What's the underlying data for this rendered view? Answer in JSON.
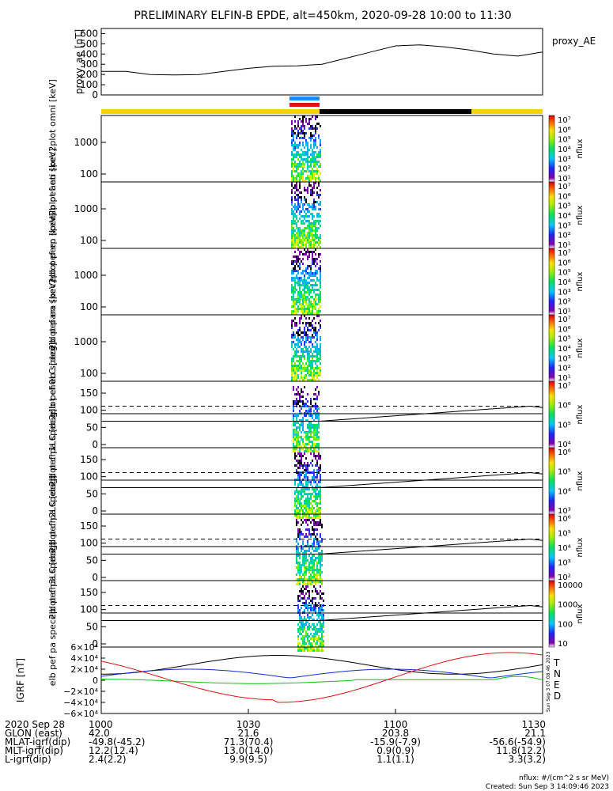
{
  "title": "PRELIMINARY ELFIN-B EPDE, alt=450km, 2020-09-28 10:00 to 11:30",
  "proxy_ae": {
    "ylabel": "proxy_ae [nT]",
    "legend": "proxy_AE",
    "yticks": [
      "600",
      "500",
      "400",
      "300",
      "200",
      "100",
      "0"
    ],
    "ylim": [
      0,
      650
    ],
    "x": [
      0,
      5,
      10,
      15,
      20,
      25,
      30,
      35,
      40,
      45,
      50,
      55,
      60,
      65,
      70,
      75,
      80,
      85,
      90
    ],
    "values": [
      230,
      230,
      200,
      195,
      200,
      230,
      260,
      280,
      285,
      300,
      360,
      420,
      480,
      490,
      470,
      440,
      400,
      380,
      420
    ]
  },
  "status_bars": {
    "colors": {
      "yellow": "#f5d400",
      "black": "#000000",
      "blue": "#1a8cff",
      "red": "#e01010"
    }
  },
  "spectrograms": [
    {
      "name": "omni",
      "ylabel": "elb pef en spec2plot omni [keV]",
      "yticks": [
        "1000",
        "100"
      ],
      "cb_labels": [
        "10⁷",
        "10⁶",
        "10⁵",
        "10⁴",
        "10³",
        "10²",
        "10¹"
      ],
      "cb_title": "nflux"
    },
    {
      "name": "anti",
      "ylabel": "elb pef en spec2plot anti [keV]",
      "yticks": [
        "1000",
        "100"
      ],
      "cb_labels": [
        "10⁷",
        "10⁶",
        "10⁵",
        "10⁴",
        "10³",
        "10²",
        "10¹"
      ],
      "cb_title": "nflux"
    },
    {
      "name": "perp",
      "ylabel": "elb pef en spec2plot perp [keV]",
      "yticks": [
        "1000",
        "100"
      ],
      "cb_labels": [
        "10⁷",
        "10⁶",
        "10⁵",
        "10⁴",
        "10³",
        "10²",
        "10¹"
      ],
      "cb_title": "nflux"
    },
    {
      "name": "para",
      "ylabel": "elb pef en spec2plot para [keV]",
      "yticks": [
        "1000",
        "100"
      ],
      "cb_labels": [
        "10⁷",
        "10⁶",
        "10⁵",
        "10⁴",
        "10³",
        "10²",
        "10¹"
      ],
      "cb_title": "nflux"
    }
  ],
  "pitch_angle": [
    {
      "name": "ch0LC",
      "ylabel": "elb pef pa spec2plot ch0LC [deg]",
      "yticks": [
        "150",
        "100",
        "50",
        "0"
      ],
      "cb_labels": [
        "10⁷",
        "10⁶",
        "10⁵",
        "10⁴"
      ],
      "cb_title": "nflux"
    },
    {
      "name": "ch1LC",
      "ylabel": "elb pef pa spec2plot ch1LC [deg]",
      "yticks": [
        "150",
        "100",
        "50",
        "0"
      ],
      "cb_labels": [
        "10⁶",
        "10⁵",
        "10⁴",
        "10³"
      ],
      "cb_title": "nflux"
    },
    {
      "name": "ch2LC",
      "ylabel": "elb pef pa spec2plot ch2LC [deg]",
      "yticks": [
        "150",
        "100",
        "50",
        "0"
      ],
      "cb_labels": [
        "10⁶",
        "10⁵",
        "10⁴",
        "10³",
        "10²"
      ],
      "cb_title": "nflux"
    },
    {
      "name": "ch3LC",
      "ylabel": "elb pef pa spec2plot ch3LC [deg]",
      "yticks": [
        "150",
        "100",
        "50",
        "0"
      ],
      "cb_labels": [
        "10000",
        "1000",
        "100",
        "10"
      ],
      "cb_title": "nflux"
    }
  ],
  "igrf": {
    "ylabel": "IGRF [nT]",
    "yticks": [
      "6×10⁴",
      "4×10⁴",
      "2×10⁴",
      "0",
      "−2×10⁴",
      "−4×10⁴",
      "−6×10⁴"
    ],
    "ylim": [
      -60000,
      60000
    ],
    "legend": [
      {
        "label": "T",
        "color": "#000000"
      },
      {
        "label": "N",
        "color": "#1030d0"
      },
      {
        "label": "E",
        "color": "#10c010"
      },
      {
        "label": "D",
        "color": "#e01010"
      }
    ],
    "side_stamp": "Sun Sep  3 07:08:46 2023"
  },
  "x_axis": {
    "ticks": [
      "1000",
      "1030",
      "1100",
      "1130"
    ]
  },
  "ephemeris": {
    "rows": [
      {
        "label": "2020 Sep 28",
        "values": [
          "1000",
          "1030",
          "1100",
          "1130"
        ]
      },
      {
        "label": "GLON (east)",
        "values": [
          "42.0",
          "21.6",
          "203.8",
          "21.1"
        ]
      },
      {
        "label": "MLAT-igrf(dip)",
        "values": [
          "-49.8(-45.2)",
          "71.3(70.4)",
          "-15.9(-7.9)",
          "-56.6(-54.9)"
        ]
      },
      {
        "label": "MLT-igrf(dip)",
        "values": [
          "12.2(12.4)",
          "13.0(14.0)",
          "0.9(0.9)",
          "11.8(12.2)"
        ]
      },
      {
        "label": "L-igrf(dip)",
        "values": [
          "2.4(2.2)",
          "9.9(9.5)",
          "1.1(1.1)",
          "3.3(3.2)"
        ]
      }
    ]
  },
  "footer": {
    "units": "nflux: #/(cm^2 s sr MeV)",
    "created": "Created: Sun Sep  3 14:09:46 2023"
  }
}
